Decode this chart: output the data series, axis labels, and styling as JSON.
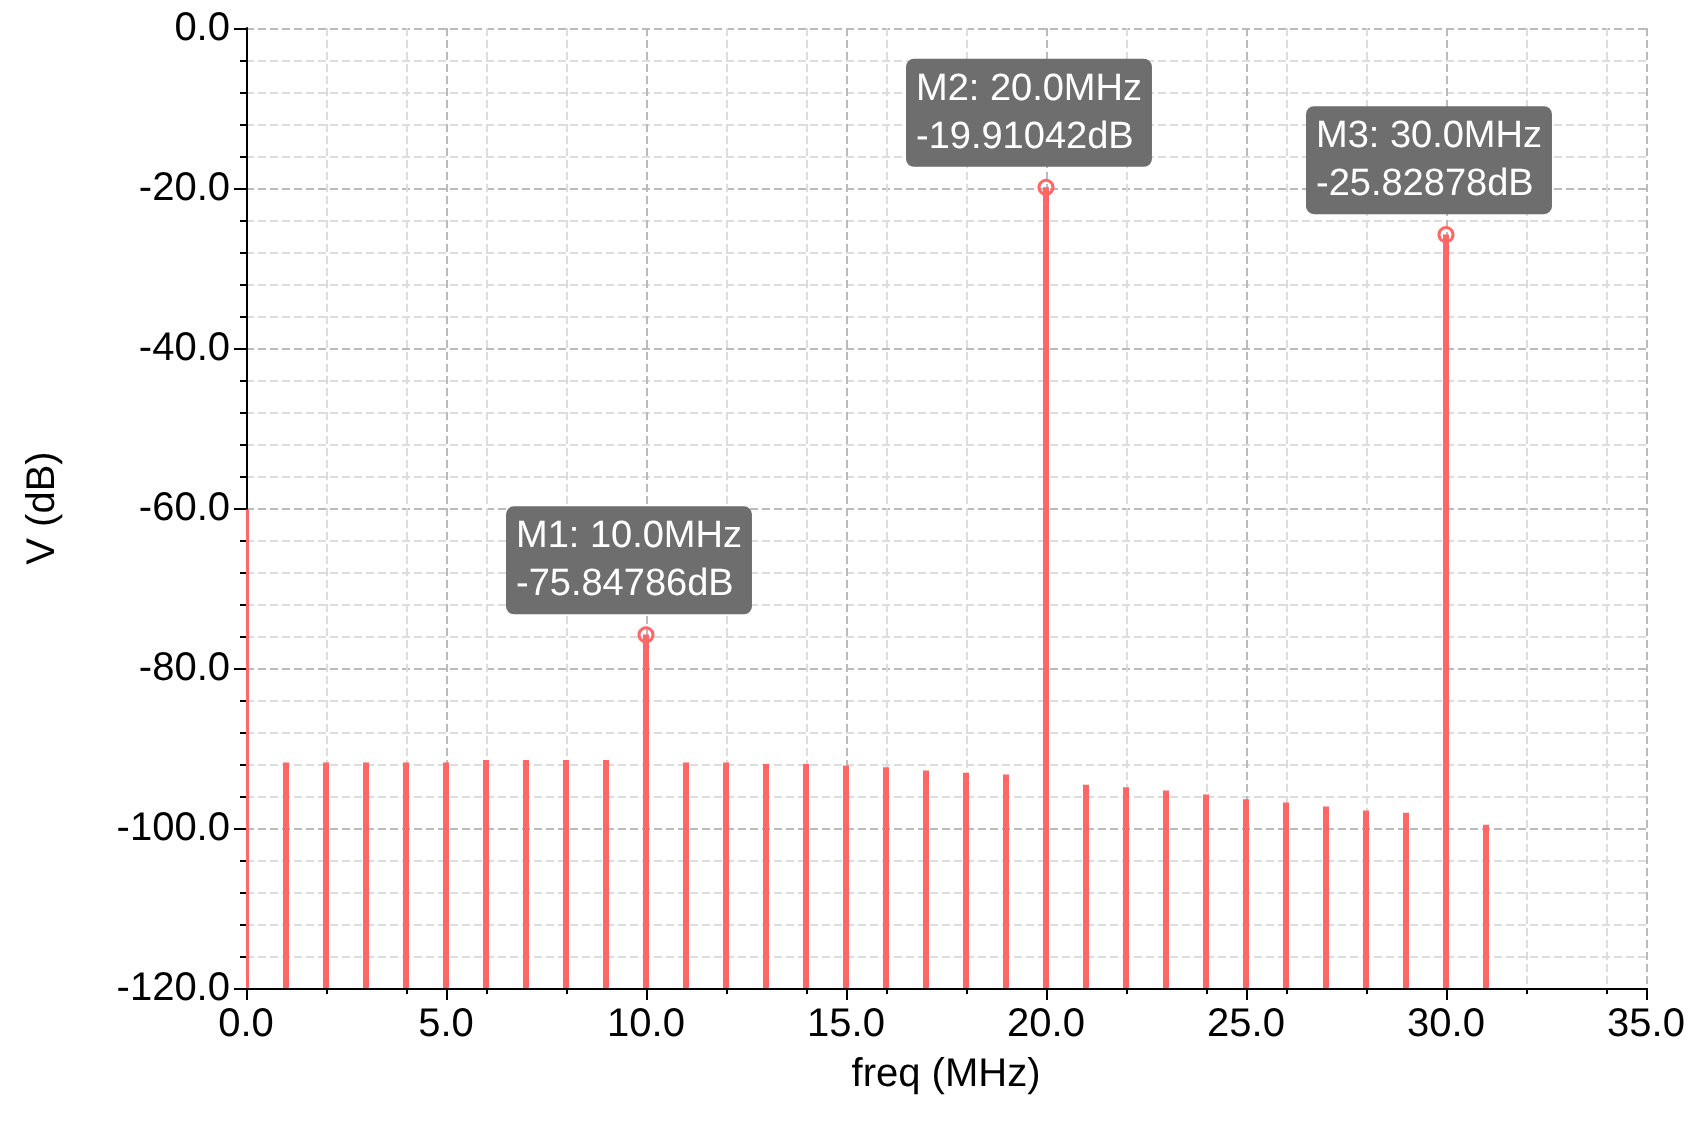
{
  "chart_data": {
    "type": "bar",
    "xlabel": "freq (MHz)",
    "ylabel": "V (dB)",
    "x": [
      0,
      1,
      2,
      3,
      4,
      5,
      6,
      7,
      8,
      9,
      10,
      11,
      12,
      13,
      14,
      15,
      16,
      17,
      18,
      19,
      20,
      21,
      22,
      23,
      24,
      25,
      26,
      27,
      28,
      29,
      30,
      31
    ],
    "base": [
      -120,
      -120,
      -120,
      -120,
      -120,
      -120,
      -120,
      -120,
      -120,
      -120,
      -120,
      -120,
      -120,
      -120,
      -120,
      -120,
      -120,
      -120,
      -120,
      -120,
      -120,
      -120,
      -120,
      -120,
      -120,
      -120,
      -120,
      -120,
      -120,
      -120,
      -120,
      -120
    ],
    "values": [
      59.8,
      28.2,
      28.2,
      28.2,
      28.2,
      28.2,
      28.5,
      28.5,
      28.5,
      28.5,
      44.2,
      28.2,
      28.2,
      28.0,
      28.0,
      27.8,
      27.6,
      27.2,
      26.9,
      26.7,
      100.1,
      25.4,
      25.1,
      24.7,
      24.2,
      23.6,
      23.2,
      22.7,
      22.2,
      21.9,
      94.2,
      20.4
    ],
    "color": "#ff6666",
    "xlim": [
      0,
      35
    ],
    "xticks": [
      {
        "value": 0,
        "label": "0.0"
      },
      {
        "value": 5,
        "label": "5.0"
      },
      {
        "value": 10,
        "label": "10.0"
      },
      {
        "value": 15,
        "label": "15.0"
      },
      {
        "value": 20,
        "label": "20.0"
      },
      {
        "value": 25,
        "label": "25.0"
      },
      {
        "value": 30,
        "label": "30.0"
      },
      {
        "value": 35,
        "label": "35.0"
      }
    ],
    "ylim": [
      -120,
      0
    ],
    "yticks": [
      {
        "value": -120,
        "label": "-120.0"
      },
      {
        "value": -100,
        "label": "-100.0"
      },
      {
        "value": -80,
        "label": "-80.0"
      },
      {
        "value": -60,
        "label": "-60.0"
      },
      {
        "value": -40,
        "label": "-40.0"
      },
      {
        "value": -20,
        "label": "-20.0"
      },
      {
        "value": 0,
        "label": "0.0"
      }
    ],
    "grid": true,
    "annotations": [
      {
        "text": "M1: 10.0MHz\n-75.84786dB",
        "x": 10,
        "y": -75.84786
      },
      {
        "text": "M2: 20.0MHz\n-19.91042dB",
        "x": 20,
        "y": -19.91042
      },
      {
        "text": "M3: 30.0MHz\n-25.82878dB",
        "x": 30,
        "y": -25.82878
      }
    ]
  }
}
